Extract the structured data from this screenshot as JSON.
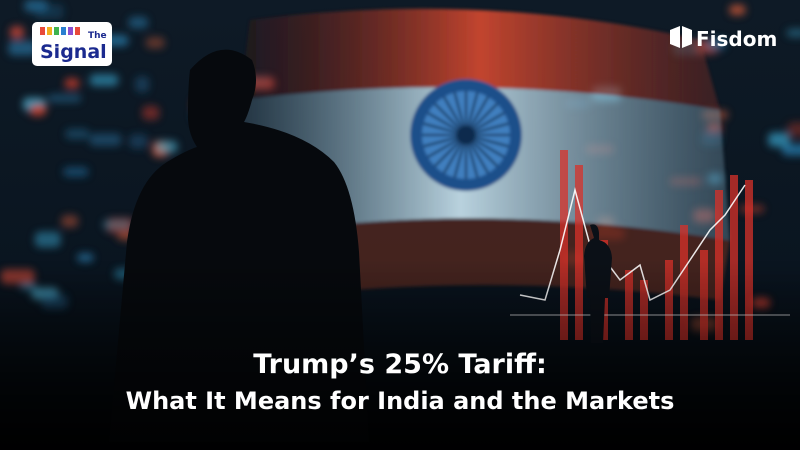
{
  "logo": {
    "small": "The",
    "name": "Signal"
  },
  "brand": "Fisdom",
  "headline": {
    "line1": "Trump’s 25% Tariff:",
    "line2": "What It Means for India and the Markets"
  }
}
